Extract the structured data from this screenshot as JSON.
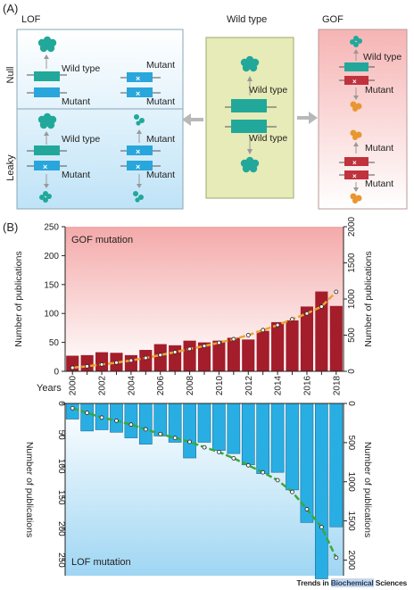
{
  "panel_a": {
    "label": "(A)",
    "lof": {
      "title": "LOF",
      "row1": "Null",
      "row2": "Leaky"
    },
    "wildtype": {
      "title": "Wild type"
    },
    "gof": {
      "title": "GOF"
    },
    "labels": {
      "wild_type": "Wild type",
      "mutant": "Mutant"
    },
    "colors": {
      "teal": "#21a89a",
      "blue": "#29a6dc",
      "red": "#c0323c",
      "orange": "#e8962e"
    }
  },
  "panel_b": {
    "label": "(B)",
    "years_label": "Years",
    "gof_label": "GOF mutation",
    "lof_label": "LOF mutation",
    "footer_text": "Trends in ",
    "footer_highlight": "Biochemical",
    "footer_end": " Sciences"
  },
  "chart_data": [
    {
      "type": "bar",
      "title": "GOF mutation",
      "xlabel": "Years",
      "ylabel": "Number of publications",
      "ylabel_right": "Number of publications",
      "categories": [
        2000,
        2001,
        2002,
        2003,
        2004,
        2005,
        2006,
        2007,
        2008,
        2009,
        2010,
        2011,
        2012,
        2013,
        2014,
        2015,
        2016,
        2017,
        2018
      ],
      "x_tick_labels": [
        "2000",
        "2002",
        "2004",
        "2006",
        "2008",
        "2010",
        "2012",
        "2014",
        "2016",
        "2018"
      ],
      "series": [
        {
          "values": [
            27,
            28,
            33,
            32,
            28,
            37,
            47,
            45,
            53,
            50,
            53,
            58,
            55,
            70,
            85,
            88,
            112,
            138,
            113
          ]
        },
        {
          "axis": "right",
          "values": [
            50,
            70,
            95,
            120,
            150,
            185,
            225,
            265,
            310,
            350,
            395,
            445,
            500,
            570,
            640,
            720,
            800,
            895,
            1100
          ]
        }
      ],
      "ylim": [
        0,
        250
      ],
      "yticks": [
        0,
        50,
        100,
        150,
        200,
        250
      ],
      "ylim_right": [
        0,
        2000
      ],
      "yticks_right": [
        0,
        500,
        1000,
        1500,
        2000
      ],
      "bar_color": "#a31d2b",
      "line_color": "#e8a532"
    },
    {
      "type": "bar",
      "title": "LOF mutation",
      "xlabel": "Years",
      "ylabel": "Number of publications",
      "ylabel_right": "Number of publications",
      "categories": [
        2000,
        2001,
        2002,
        2003,
        2004,
        2005,
        2006,
        2007,
        2008,
        2009,
        2010,
        2011,
        2012,
        2013,
        2014,
        2015,
        2016,
        2017,
        2018
      ],
      "series": [
        {
          "values": [
            25,
            44,
            42,
            46,
            55,
            65,
            52,
            62,
            87,
            62,
            75,
            80,
            98,
            112,
            110,
            138,
            190,
            280,
            197
          ]
        },
        {
          "axis": "right",
          "values": [
            60,
            120,
            180,
            220,
            270,
            330,
            390,
            440,
            490,
            560,
            620,
            700,
            790,
            880,
            980,
            1130,
            1350,
            1580,
            1970
          ]
        }
      ],
      "ylim": [
        0,
        275
      ],
      "yticks": [
        0,
        50,
        100,
        150,
        200,
        250
      ],
      "ylim_right": [
        0,
        2200
      ],
      "yticks_right": [
        0,
        500,
        1000,
        1500,
        2000
      ],
      "inverted": true,
      "bar_color": "#29aee3",
      "line_color": "#3aa83a"
    }
  ]
}
